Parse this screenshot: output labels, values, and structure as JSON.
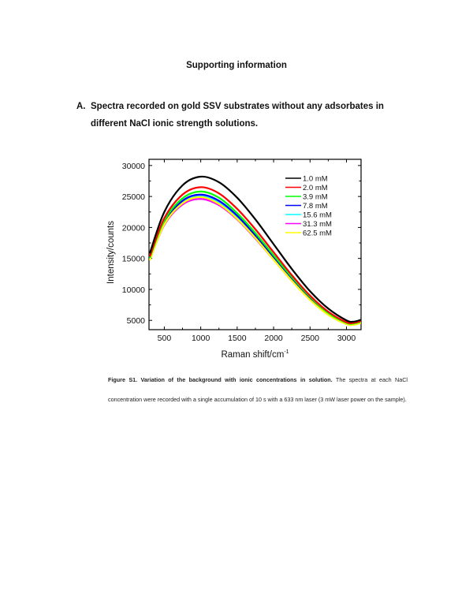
{
  "page": {
    "heading": "Supporting information",
    "section": {
      "marker": "A.",
      "title": "Spectra recorded on gold SSV substrates without any adsorbates in different NaCl ionic strength solutions."
    },
    "caption": {
      "label": "Figure S1. Variation of the background with ionic concentrations in solution.",
      "text": " The spectra at each NaCl concentration were recorded with a single accumulation of 10 s with a 633 nm laser (3 mW laser power on the sample)."
    }
  },
  "chart_data": {
    "type": "line",
    "title": "",
    "xlabel": "Raman shift/cm",
    "xlabel_superscript": "-1",
    "ylabel": "Intensity/counts",
    "xlim": [
      290,
      3200
    ],
    "ylim": [
      3500,
      31000
    ],
    "xticks": [
      500,
      1000,
      1500,
      2000,
      2500,
      3000
    ],
    "yticks": [
      5000,
      10000,
      15000,
      20000,
      25000,
      30000
    ],
    "grid": false,
    "legend_position": "upper right",
    "x": [
      300,
      500,
      750,
      1000,
      1250,
      1500,
      1750,
      2000,
      2250,
      2500,
      2750,
      3000,
      3100,
      3200
    ],
    "series": [
      {
        "name": "1.0 mM",
        "color": "#000000",
        "values": [
          15800,
          22500,
          26800,
          28200,
          27300,
          24800,
          21300,
          17300,
          13300,
          9700,
          6900,
          5000,
          4800,
          5100
        ]
      },
      {
        "name": "2.0 mM",
        "color": "#ff0000",
        "values": [
          15300,
          21500,
          25300,
          26500,
          25500,
          23000,
          19700,
          16000,
          12300,
          9000,
          6400,
          4700,
          4600,
          4900
        ]
      },
      {
        "name": "3.9 mM",
        "color": "#00ff00",
        "values": [
          15100,
          21100,
          24700,
          25800,
          24800,
          22300,
          19100,
          15500,
          12000,
          8800,
          6200,
          4600,
          4500,
          4800
        ]
      },
      {
        "name": "7.8 mM",
        "color": "#0000ff",
        "values": [
          15000,
          20800,
          24300,
          25300,
          24300,
          21900,
          18700,
          15200,
          11700,
          8600,
          6100,
          4600,
          4500,
          4800
        ]
      },
      {
        "name": "15.6 mM",
        "color": "#00ffff",
        "values": [
          14900,
          20600,
          24000,
          25000,
          24000,
          21600,
          18500,
          15000,
          11600,
          8500,
          6000,
          4500,
          4400,
          4700
        ]
      },
      {
        "name": "31.3 mM",
        "color": "#ff00ff",
        "values": [
          14800,
          20400,
          23700,
          24600,
          23600,
          21300,
          18200,
          14800,
          11400,
          8400,
          5900,
          4400,
          4300,
          4600
        ]
      },
      {
        "name": "62.5 mM",
        "color": "#ffff00",
        "values": [
          14700,
          20500,
          23900,
          24900,
          23800,
          21400,
          18300,
          14800,
          11400,
          8300,
          5900,
          4400,
          4300,
          4600
        ]
      }
    ]
  }
}
